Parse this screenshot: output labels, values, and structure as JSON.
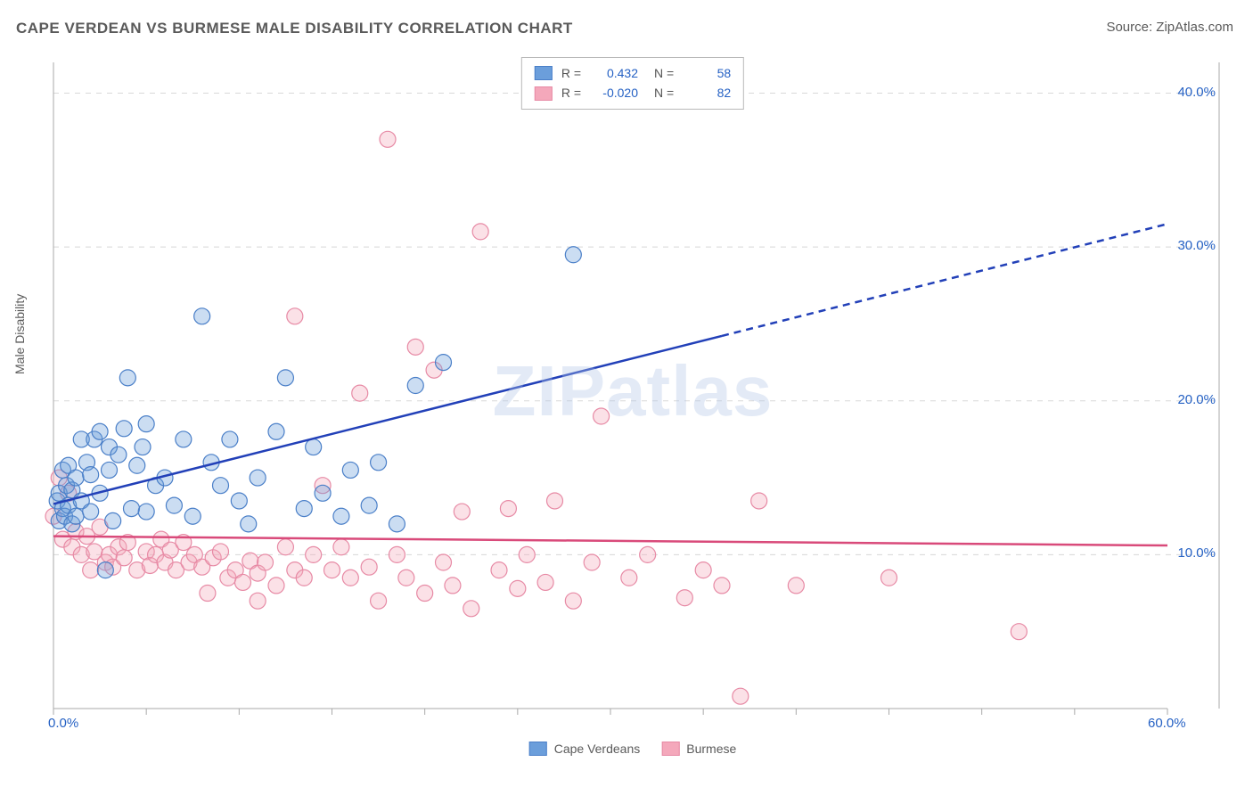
{
  "title": "CAPE VERDEAN VS BURMESE MALE DISABILITY CORRELATION CHART",
  "source": "Source: ZipAtlas.com",
  "watermark": "ZIPatlas",
  "y_axis_label": "Male Disability",
  "chart": {
    "type": "scatter",
    "background_color": "#ffffff",
    "xlim": [
      0,
      60
    ],
    "ylim": [
      0,
      42
    ],
    "x_ticks": [
      0,
      5,
      10,
      15,
      20,
      25,
      30,
      35,
      40,
      45,
      50,
      55,
      60
    ],
    "x_tick_labels_shown": {
      "0": "0.0%",
      "60": "60.0%"
    },
    "y_ticks": [
      10,
      20,
      30,
      40
    ],
    "y_tick_labels": [
      "10.0%",
      "20.0%",
      "30.0%",
      "40.0%"
    ],
    "grid_color": "#d8d8d8",
    "grid_dash": "6,6",
    "axis_color": "#aaaaaa",
    "tick_label_color": "#2561c4",
    "marker_radius": 9,
    "marker_stroke_width": 1.2,
    "marker_fill_opacity": 0.35,
    "series": [
      {
        "name": "Cape Verdeans",
        "fill": "#6b9edb",
        "stroke": "#4a7fc8",
        "R": "0.432",
        "N": "58",
        "trend": {
          "y_at_x0": 13.3,
          "y_at_x60": 31.5,
          "solid_until_x": 36,
          "stroke": "#2240b8",
          "width": 2.5
        },
        "points": [
          [
            0.2,
            13.5
          ],
          [
            0.3,
            12.2
          ],
          [
            0.3,
            14.0
          ],
          [
            0.5,
            13.0
          ],
          [
            0.5,
            15.5
          ],
          [
            0.6,
            12.5
          ],
          [
            0.7,
            14.5
          ],
          [
            0.8,
            13.2
          ],
          [
            0.8,
            15.8
          ],
          [
            1.0,
            12.0
          ],
          [
            1.0,
            14.2
          ],
          [
            1.2,
            12.5
          ],
          [
            1.2,
            15.0
          ],
          [
            1.5,
            13.5
          ],
          [
            1.5,
            17.5
          ],
          [
            1.8,
            16.0
          ],
          [
            2.0,
            12.8
          ],
          [
            2.0,
            15.2
          ],
          [
            2.2,
            17.5
          ],
          [
            2.5,
            14.0
          ],
          [
            2.5,
            18.0
          ],
          [
            2.8,
            9.0
          ],
          [
            3.0,
            15.5
          ],
          [
            3.0,
            17.0
          ],
          [
            3.2,
            12.2
          ],
          [
            3.5,
            16.5
          ],
          [
            3.8,
            18.2
          ],
          [
            4.0,
            21.5
          ],
          [
            4.2,
            13.0
          ],
          [
            4.5,
            15.8
          ],
          [
            4.8,
            17.0
          ],
          [
            5.0,
            12.8
          ],
          [
            5.0,
            18.5
          ],
          [
            5.5,
            14.5
          ],
          [
            6.0,
            15.0
          ],
          [
            6.5,
            13.2
          ],
          [
            7.0,
            17.5
          ],
          [
            7.5,
            12.5
          ],
          [
            8.0,
            25.5
          ],
          [
            8.5,
            16.0
          ],
          [
            9.0,
            14.5
          ],
          [
            9.5,
            17.5
          ],
          [
            10.0,
            13.5
          ],
          [
            10.5,
            12.0
          ],
          [
            11.0,
            15.0
          ],
          [
            12.0,
            18.0
          ],
          [
            12.5,
            21.5
          ],
          [
            13.5,
            13.0
          ],
          [
            14.0,
            17.0
          ],
          [
            14.5,
            14.0
          ],
          [
            15.5,
            12.5
          ],
          [
            16.0,
            15.5
          ],
          [
            17.0,
            13.2
          ],
          [
            17.5,
            16.0
          ],
          [
            18.5,
            12.0
          ],
          [
            19.5,
            21.0
          ],
          [
            21.0,
            22.5
          ],
          [
            28.0,
            29.5
          ]
        ]
      },
      {
        "name": "Burmese",
        "fill": "#f4a8bb",
        "stroke": "#e78aa5",
        "R": "-0.020",
        "N": "82",
        "trend": {
          "y_at_x0": 11.2,
          "y_at_x60": 10.6,
          "solid_until_x": 60,
          "stroke": "#d94a7a",
          "width": 2.5
        },
        "points": [
          [
            0.0,
            12.5
          ],
          [
            0.3,
            15.0
          ],
          [
            0.5,
            11.0
          ],
          [
            0.8,
            14.0
          ],
          [
            1.0,
            10.5
          ],
          [
            1.2,
            11.5
          ],
          [
            1.5,
            10.0
          ],
          [
            1.8,
            11.2
          ],
          [
            2.0,
            9.0
          ],
          [
            2.2,
            10.2
          ],
          [
            2.5,
            11.8
          ],
          [
            2.8,
            9.5
          ],
          [
            3.0,
            10.0
          ],
          [
            3.2,
            9.2
          ],
          [
            3.5,
            10.5
          ],
          [
            3.8,
            9.8
          ],
          [
            4.0,
            10.8
          ],
          [
            4.5,
            9.0
          ],
          [
            5.0,
            10.2
          ],
          [
            5.2,
            9.3
          ],
          [
            5.5,
            10.0
          ],
          [
            5.8,
            11.0
          ],
          [
            6.0,
            9.5
          ],
          [
            6.3,
            10.3
          ],
          [
            6.6,
            9.0
          ],
          [
            7.0,
            10.8
          ],
          [
            7.3,
            9.5
          ],
          [
            7.6,
            10.0
          ],
          [
            8.0,
            9.2
          ],
          [
            8.3,
            7.5
          ],
          [
            8.6,
            9.8
          ],
          [
            9.0,
            10.2
          ],
          [
            9.4,
            8.5
          ],
          [
            9.8,
            9.0
          ],
          [
            10.2,
            8.2
          ],
          [
            10.6,
            9.6
          ],
          [
            11.0,
            8.8
          ],
          [
            11.0,
            7.0
          ],
          [
            11.4,
            9.5
          ],
          [
            12.0,
            8.0
          ],
          [
            12.5,
            10.5
          ],
          [
            13.0,
            9.0
          ],
          [
            13.0,
            25.5
          ],
          [
            13.5,
            8.5
          ],
          [
            14.0,
            10.0
          ],
          [
            14.5,
            14.5
          ],
          [
            15.0,
            9.0
          ],
          [
            15.5,
            10.5
          ],
          [
            16.0,
            8.5
          ],
          [
            16.5,
            20.5
          ],
          [
            17.0,
            9.2
          ],
          [
            17.5,
            7.0
          ],
          [
            18.0,
            37.0
          ],
          [
            18.5,
            10.0
          ],
          [
            19.0,
            8.5
          ],
          [
            19.5,
            23.5
          ],
          [
            20.0,
            7.5
          ],
          [
            20.5,
            22.0
          ],
          [
            21.0,
            9.5
          ],
          [
            21.5,
            8.0
          ],
          [
            22.0,
            12.8
          ],
          [
            22.5,
            6.5
          ],
          [
            23.0,
            31.0
          ],
          [
            24.0,
            9.0
          ],
          [
            24.5,
            13.0
          ],
          [
            25.0,
            7.8
          ],
          [
            25.5,
            10.0
          ],
          [
            26.5,
            8.2
          ],
          [
            27.0,
            13.5
          ],
          [
            28.0,
            7.0
          ],
          [
            29.0,
            9.5
          ],
          [
            29.5,
            19.0
          ],
          [
            31.0,
            8.5
          ],
          [
            32.0,
            10.0
          ],
          [
            34.0,
            7.2
          ],
          [
            35.0,
            9.0
          ],
          [
            36.0,
            8.0
          ],
          [
            37.0,
            0.8
          ],
          [
            38.0,
            13.5
          ],
          [
            40.0,
            8.0
          ],
          [
            45.0,
            8.5
          ],
          [
            52.0,
            5.0
          ]
        ]
      }
    ]
  },
  "legend_bottom": [
    "Cape Verdeans",
    "Burmese"
  ]
}
